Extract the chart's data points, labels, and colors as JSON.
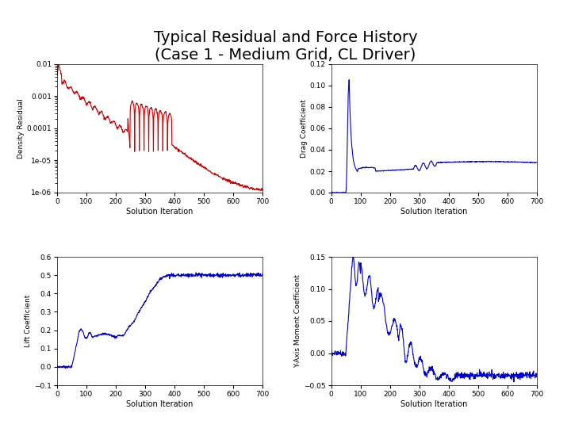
{
  "title": "Typical Residual and Force History\n(Case 1 - Medium Grid, CL Driver)",
  "title_fontsize": 14,
  "background_color": "#ffffff",
  "subplot_labels": {
    "top_left_ylabel": "Density Residual",
    "top_left_xlabel": "Solution Iteration",
    "top_right_ylabel": "Drag Coefficient",
    "top_right_xlabel": "Solution Iteration",
    "bot_left_ylabel": "Lift Coefficient",
    "bot_left_xlabel": "Solution Iteration",
    "bot_right_ylabel": "Y-Axis Moment Coefficient",
    "bot_right_xlabel": "Solution Iteration"
  },
  "axes_ranges": {
    "tl_xlim": [
      0,
      700
    ],
    "tl_ylim": [
      1e-06,
      0.01
    ],
    "tr_xlim": [
      0,
      700
    ],
    "tr_ylim": [
      0,
      0.12
    ],
    "bl_xlim": [
      0,
      700
    ],
    "bl_ylim": [
      -0.1,
      0.6
    ],
    "br_xlim": [
      0,
      700
    ],
    "br_ylim": [
      -0.05,
      0.15
    ]
  },
  "colors": {
    "residual_line": "#cc0000",
    "force_line": "#0000cc"
  },
  "label_fontsize": 7,
  "tick_fontsize": 6.5,
  "ylabel_fontsize": 6.5
}
